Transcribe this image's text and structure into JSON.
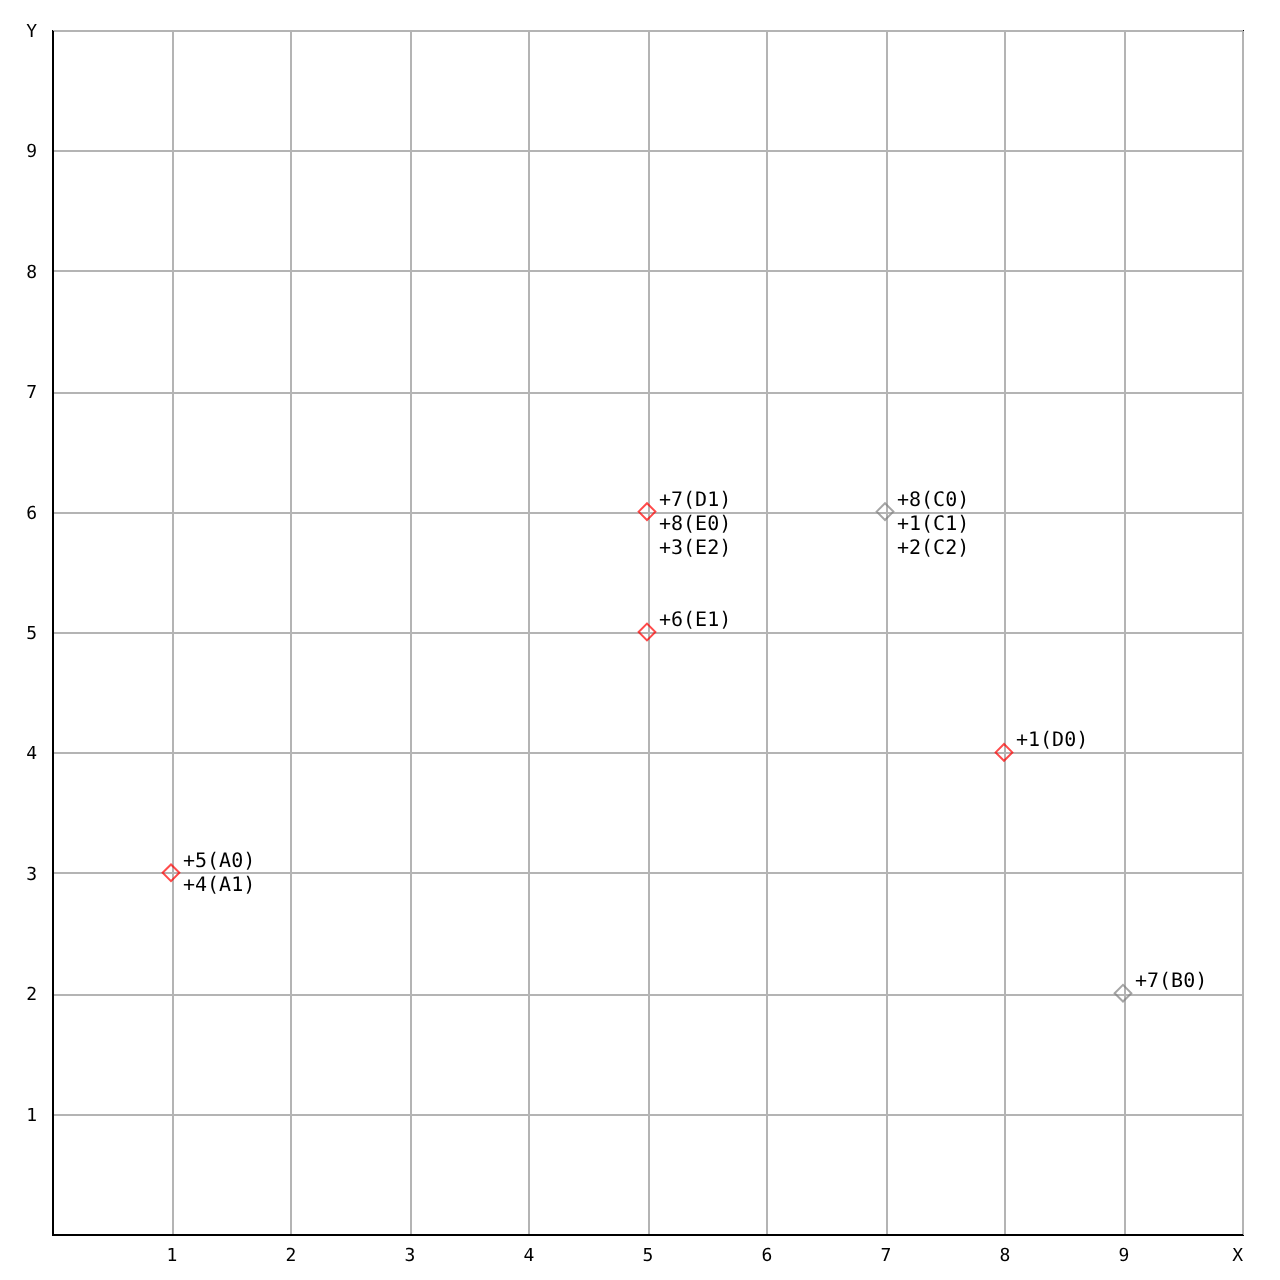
{
  "chart_data": {
    "type": "scatter",
    "marker": "diamond",
    "grid": true,
    "xlim": [
      0,
      10
    ],
    "xticks": [
      1,
      2,
      3,
      4,
      5,
      6,
      7,
      8,
      9,
      {
        "value": 10,
        "label": "X"
      }
    ],
    "ylim": [
      0,
      10
    ],
    "yticks": [
      1,
      2,
      3,
      4,
      5,
      6,
      7,
      8,
      9,
      {
        "value": 10,
        "label": "Y"
      }
    ],
    "series": [
      {
        "color": "#ff0000",
        "x": [
          1,
          5,
          5,
          8
        ],
        "values": [
          3,
          6,
          5,
          4
        ]
      },
      {
        "color": "#808080",
        "x": [
          7,
          9
        ],
        "values": [
          6,
          2
        ]
      }
    ],
    "annotations": [
      {
        "text": "+5(A0)",
        "x": 1,
        "y": 3
      },
      {
        "text": "+4(A1)",
        "x": 1,
        "y": 3
      },
      {
        "text": "+7(D1)",
        "x": 5,
        "y": 6
      },
      {
        "text": "+8(E0)",
        "x": 5,
        "y": 6
      },
      {
        "text": "+3(E2)",
        "x": 5,
        "y": 6
      },
      {
        "text": "+6(E1)",
        "x": 5,
        "y": 5
      },
      {
        "text": "+8(C0)",
        "x": 7,
        "y": 6
      },
      {
        "text": "+1(C1)",
        "x": 7,
        "y": 6
      },
      {
        "text": "+2(C2)",
        "x": 7,
        "y": 6
      },
      {
        "text": "+1(D0)",
        "x": 8,
        "y": 4
      },
      {
        "text": "+7(B0)",
        "x": 9,
        "y": 2
      }
    ]
  }
}
